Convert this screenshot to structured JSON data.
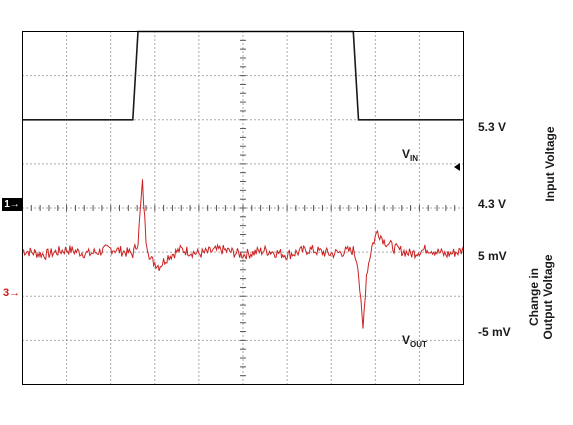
{
  "chart_data": {
    "type": "line",
    "x_divisions": 10,
    "y_divisions": 8,
    "grid": true,
    "series": [
      {
        "channel": "1",
        "color": "#1a1a1a",
        "units": "V",
        "reference_level": 4.3,
        "volts_per_div": 0.5,
        "points": [
          [
            0,
            4.3
          ],
          [
            2.5,
            4.3
          ],
          [
            2.62,
            5.3
          ],
          [
            7.5,
            5.3
          ],
          [
            7.62,
            4.3
          ],
          [
            10,
            4.3
          ]
        ]
      },
      {
        "channel": "3",
        "color": "#cc2222",
        "units": "mV",
        "reference_level": 0,
        "mv_per_div": 5,
        "points": [
          [
            0,
            0.2
          ],
          [
            0.5,
            -0.3
          ],
          [
            1.0,
            0.3
          ],
          [
            1.5,
            -0.2
          ],
          [
            2.0,
            0.4
          ],
          [
            2.5,
            -0.2
          ],
          [
            2.62,
            1.2
          ],
          [
            2.72,
            7.8
          ],
          [
            2.8,
            1.5
          ],
          [
            2.9,
            -0.8
          ],
          [
            3.1,
            -1.6
          ],
          [
            3.3,
            -0.5
          ],
          [
            3.6,
            0.3
          ],
          [
            4.0,
            -0.2
          ],
          [
            4.5,
            0.3
          ],
          [
            5.0,
            -0.3
          ],
          [
            5.5,
            0.2
          ],
          [
            6.0,
            -0.3
          ],
          [
            6.5,
            0.3
          ],
          [
            7.0,
            -0.2
          ],
          [
            7.5,
            0.2
          ],
          [
            7.6,
            -1.2
          ],
          [
            7.72,
            -8.8
          ],
          [
            7.8,
            -2.5
          ],
          [
            7.92,
            0.6
          ],
          [
            8.05,
            2.4
          ],
          [
            8.2,
            1.3
          ],
          [
            8.45,
            0.4
          ],
          [
            8.8,
            -0.2
          ],
          [
            9.2,
            0.4
          ],
          [
            9.6,
            -0.3
          ],
          [
            10,
            0.2
          ]
        ]
      }
    ]
  },
  "labels": {
    "v53": "5.3 V",
    "v43": "4.3 V",
    "vin_main": "V",
    "vin_sub": "IN",
    "input_voltage": "Input Voltage",
    "mv5": "5 mV",
    "mvneg5": "-5 mV",
    "vout_main": "V",
    "vout_sub": "OUT",
    "change_line1": "Change in",
    "change_line2": "Output Voltage",
    "ch1_marker": "1→",
    "ch3_marker": "3→"
  }
}
